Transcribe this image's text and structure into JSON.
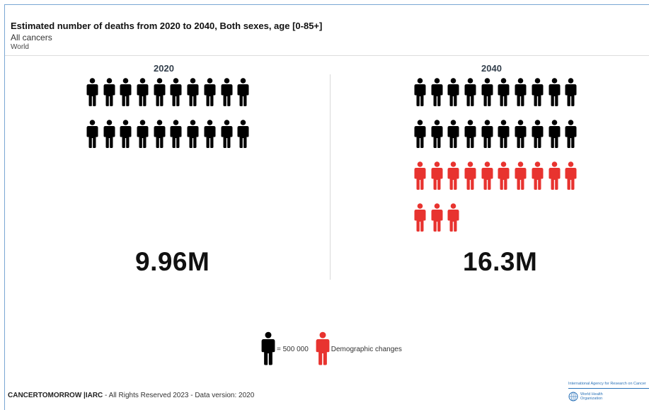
{
  "header": {
    "title": "Estimated number of deaths from 2020 to 2040, Both sexes, age [0-85+]",
    "subtitle": "All cancers",
    "region": "World"
  },
  "chart_data": {
    "type": "pictogram",
    "unit_per_icon": 500000,
    "panels": [
      {
        "year": "2020",
        "value_label": "9.96M",
        "value": 9960000,
        "base_icons": 20,
        "demographic_icons": 0
      },
      {
        "year": "2040",
        "value_label": "16.3M",
        "value": 16300000,
        "base_icons": 20,
        "demographic_icons": 13
      }
    ],
    "legend": {
      "base_label": "= 500 000",
      "demographic_label": "Demographic changes"
    },
    "colors": {
      "base": "#000000",
      "demographic": "#e8332f"
    }
  },
  "footer": {
    "brand": "CANCERTOMORROW |IARC",
    "text": " - All Rights Reserved 2023 - Data version: 2020"
  },
  "logos": {
    "iarc": "International Agency for Research on Cancer",
    "who_line1": "World Health",
    "who_line2": "Organization"
  }
}
